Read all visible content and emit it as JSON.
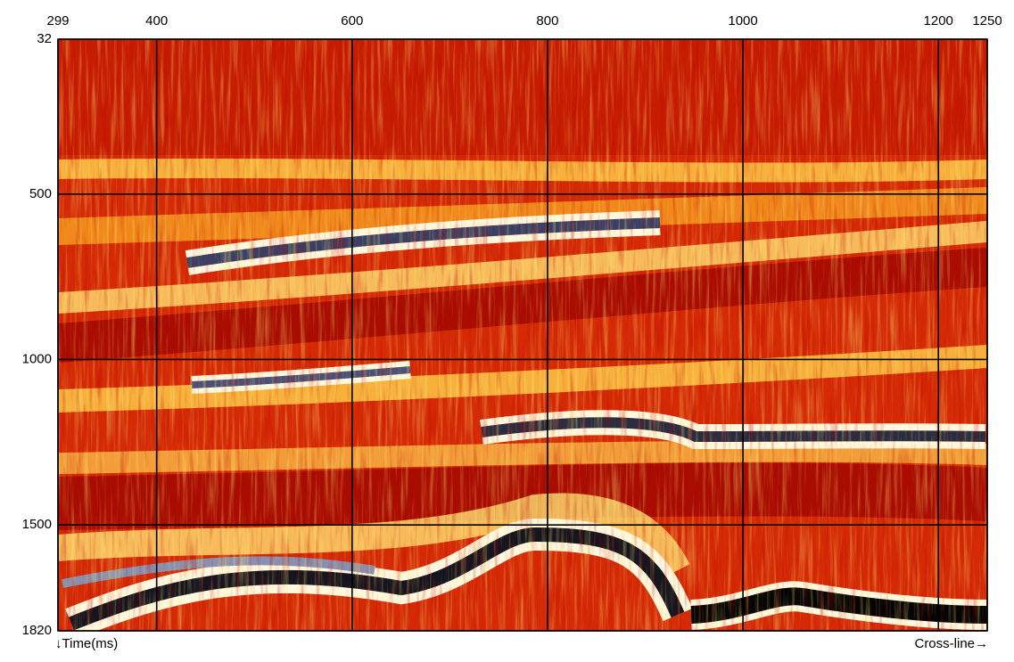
{
  "chart_data": {
    "type": "seismic-section",
    "x_label": "Cross-line→",
    "y_label": "↓Time(ms)",
    "xlim": [
      299,
      1250
    ],
    "xticks": [
      299,
      400,
      600,
      800,
      1000,
      1200,
      1250
    ],
    "ylim": [
      32,
      1820
    ],
    "yticks": [
      32,
      500,
      1000,
      1500,
      1820
    ],
    "grid": true
  }
}
